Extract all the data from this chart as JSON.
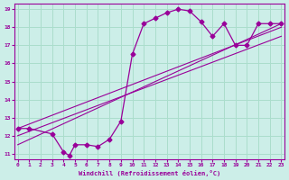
{
  "xlabel": "Windchill (Refroidissement éolien,°C)",
  "bg_color": "#cceee8",
  "grid_color": "#aaddcc",
  "line_color": "#990099",
  "xmin": 0,
  "xmax": 23,
  "ymin": 11,
  "ymax": 19,
  "xticks": [
    0,
    1,
    2,
    3,
    4,
    5,
    6,
    7,
    8,
    9,
    10,
    11,
    12,
    13,
    14,
    15,
    16,
    17,
    18,
    19,
    20,
    21,
    22,
    23
  ],
  "yticks": [
    11,
    12,
    13,
    14,
    15,
    16,
    17,
    18,
    19
  ],
  "line1_x": [
    0,
    1,
    3,
    4,
    4.5,
    5,
    6,
    7,
    8,
    9,
    10,
    11,
    12,
    13,
    14,
    15,
    16,
    17,
    18,
    19,
    20,
    21,
    22,
    23
  ],
  "line1_y": [
    12.4,
    12.4,
    12.1,
    11.1,
    10.9,
    11.5,
    11.5,
    11.4,
    11.8,
    12.8,
    16.5,
    18.2,
    18.5,
    18.8,
    19.0,
    18.9,
    18.3,
    17.5,
    18.2,
    17.0,
    17.0,
    18.2,
    18.2,
    18.2
  ],
  "line2_x": [
    0,
    23
  ],
  "line2_y": [
    11.5,
    18.2
  ],
  "line3_x": [
    0,
    23
  ],
  "line3_y": [
    12.0,
    17.5
  ],
  "line4_x": [
    0,
    23
  ],
  "line4_y": [
    12.4,
    18.0
  ]
}
